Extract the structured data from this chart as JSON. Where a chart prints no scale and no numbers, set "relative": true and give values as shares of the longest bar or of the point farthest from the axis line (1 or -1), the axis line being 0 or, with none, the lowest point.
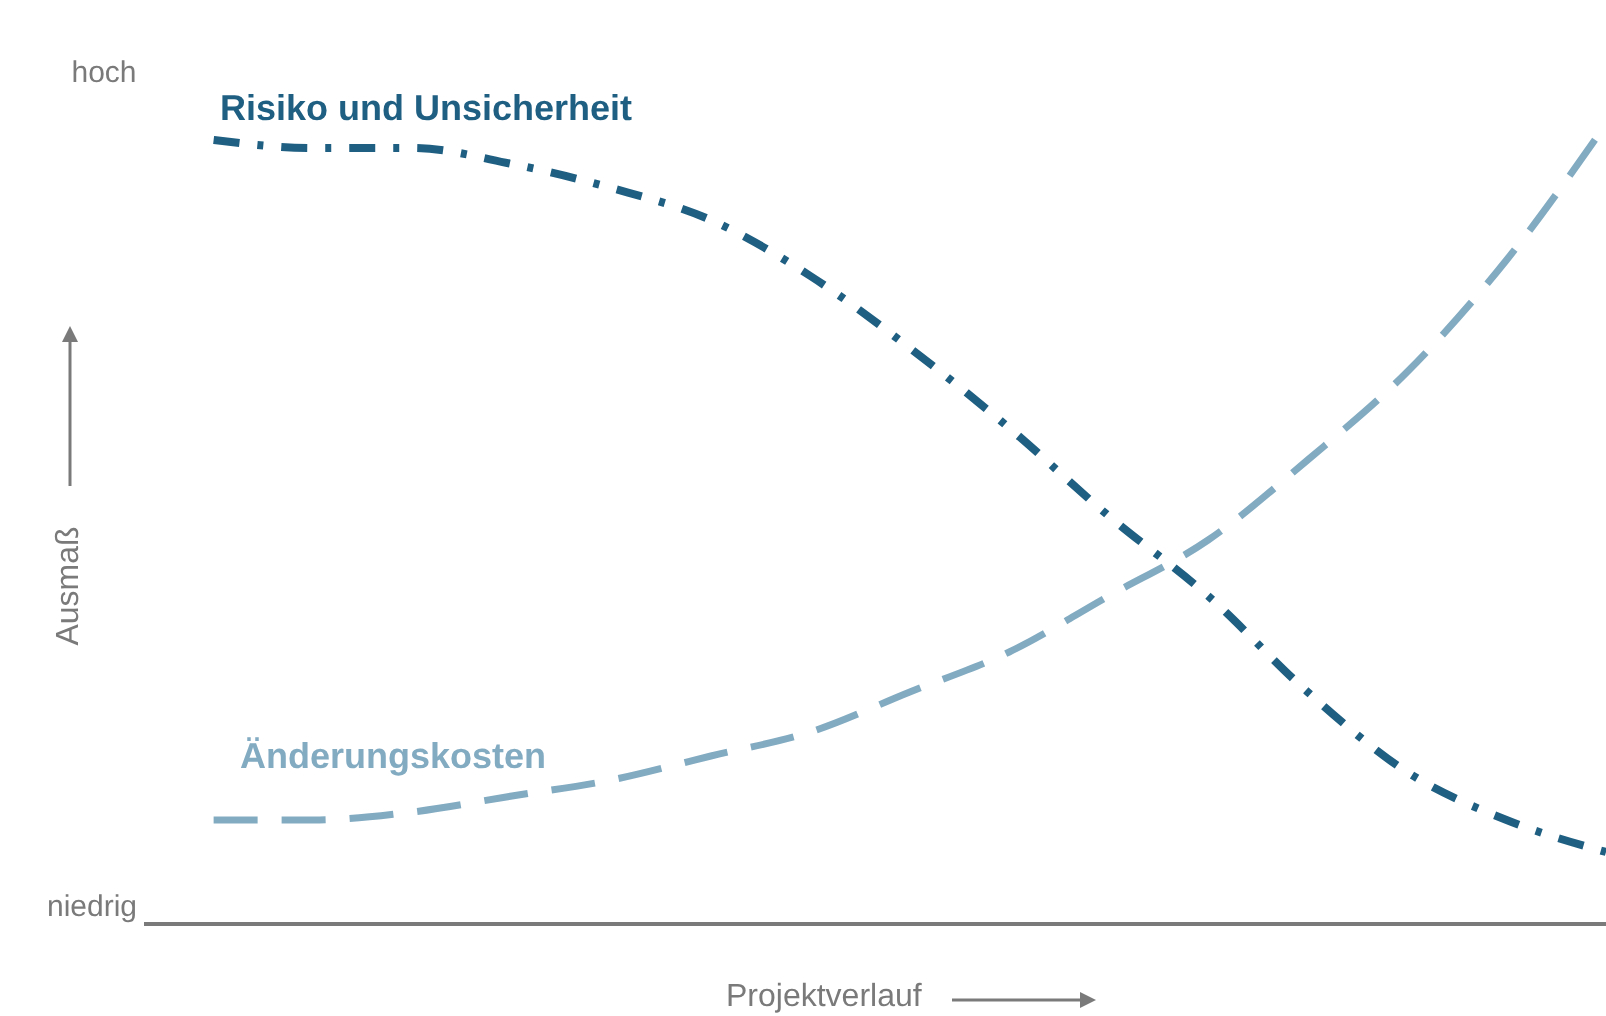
{
  "chart_data": {
    "type": "line",
    "relative": true,
    "xlabel": "Projektverlauf",
    "ylabel": "Ausmaß",
    "annotations": [
      "hoch",
      "niedrig"
    ],
    "categories": [
      null,
      null,
      null,
      null,
      null,
      null,
      null,
      null,
      null,
      null,
      null,
      null,
      null,
      null,
      null
    ],
    "series": [
      {
        "name": "Risiko und Unsicherheit",
        "color": "#1f5f82",
        "line_style": "dashdot",
        "values": [
          0.98,
          0.97,
          0.97,
          0.95,
          0.92,
          0.88,
          0.81,
          0.72,
          0.62,
          0.51,
          0.41,
          0.29,
          0.19,
          0.13,
          0.09
        ]
      },
      {
        "name": "Änderungskosten",
        "color": "#82abc2",
        "line_style": "dashed",
        "values": [
          0.13,
          0.13,
          0.14,
          0.16,
          0.18,
          0.21,
          0.24,
          0.29,
          0.34,
          0.41,
          0.48,
          0.58,
          0.69,
          0.83,
          1
        ]
      }
    ],
    "grid": false,
    "legend": false,
    "marker": "none"
  }
}
